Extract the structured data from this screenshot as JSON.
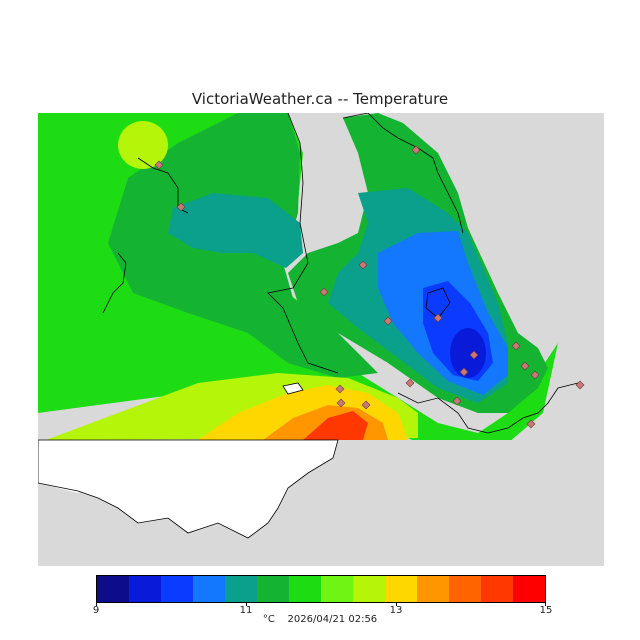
{
  "header": {
    "title": "VictoriaWeather.ca -- Temperature"
  },
  "legend": {
    "colors": [
      "#0d0d8c",
      "#0a1ad9",
      "#0a3bff",
      "#1478ff",
      "#0aa08c",
      "#14b432",
      "#1edc14",
      "#6ef514",
      "#b4f50a",
      "#ffd700",
      "#ff9600",
      "#ff6400",
      "#ff3700",
      "#ff0000"
    ],
    "tick_labels": [
      {
        "value": 9,
        "text": "9"
      },
      {
        "value": 11,
        "text": "11"
      },
      {
        "value": 13,
        "text": "13"
      },
      {
        "value": 15,
        "text": "15"
      }
    ],
    "min": 9,
    "max": 15
  },
  "footer": {
    "unit": "°C",
    "timestamp": "2026/04/21 02:56"
  },
  "colors": {
    "land_no_data": "#d9d9d9",
    "outside": "#ffffff",
    "station_marker": "#c87878"
  }
}
